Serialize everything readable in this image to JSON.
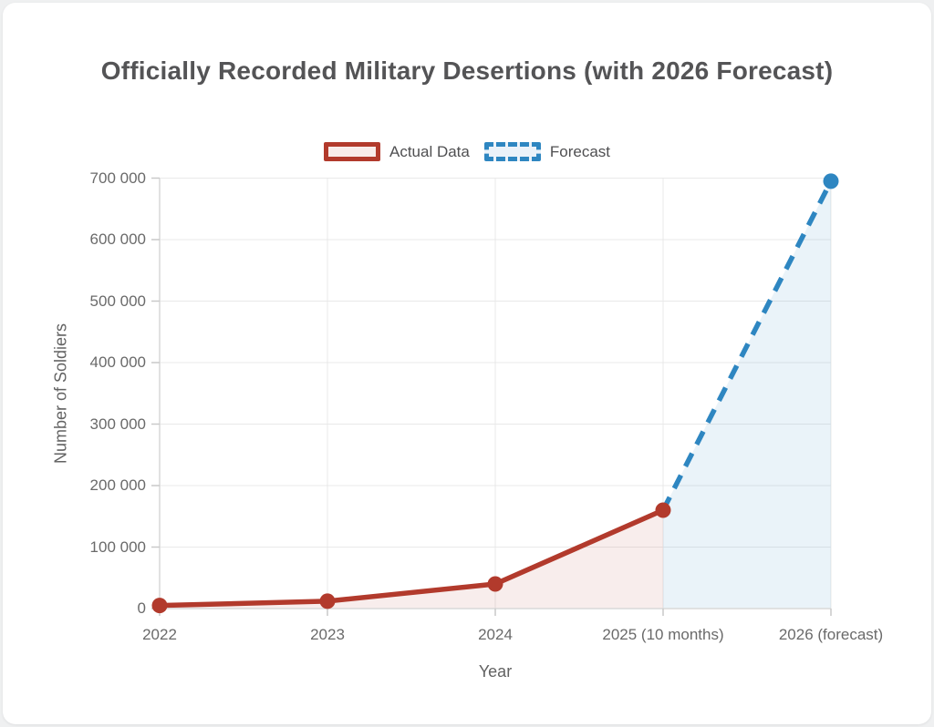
{
  "page": {
    "background_color": "#eff0f1",
    "card_color": "#ffffff"
  },
  "chart": {
    "title": "Officially Recorded Military Desertions (with 2026 Forecast)",
    "legend": [
      {
        "label": "Actual Data",
        "color": "#b23a2c",
        "fill": "#f8ecea",
        "dashed": false
      },
      {
        "label": "Forecast",
        "color": "#2e86c1",
        "fill": "#ebf2f9",
        "dashed": true
      }
    ]
  },
  "chart_data": {
    "type": "line",
    "title": "Officially Recorded Military Desertions (with 2026 Forecast)",
    "xlabel": "Year",
    "ylabel": "Number of Soldiers",
    "categories": [
      "2022",
      "2023",
      "2024",
      "2025 (10 months)",
      "2026 (forecast)"
    ],
    "series": [
      {
        "name": "Actual Data",
        "style": "solid",
        "color": "#b23a2c",
        "area_opacity": 0.09,
        "values": [
          5000,
          12000,
          40000,
          160000,
          null
        ],
        "show_points_at": [
          0,
          1,
          2,
          3
        ]
      },
      {
        "name": "Forecast",
        "style": "dashed",
        "color": "#2e86c1",
        "area_opacity": 0.1,
        "values": [
          null,
          null,
          null,
          160000,
          695000
        ],
        "show_points_at": [
          4
        ]
      }
    ],
    "ylim": [
      0,
      700000
    ],
    "ytick_step": 100000,
    "ytick_labels": [
      "0",
      "100 000",
      "200 000",
      "300 000",
      "400 000",
      "500 000",
      "600 000",
      "700 000"
    ],
    "grid": true,
    "area_fill": true,
    "legend_position": "top"
  }
}
